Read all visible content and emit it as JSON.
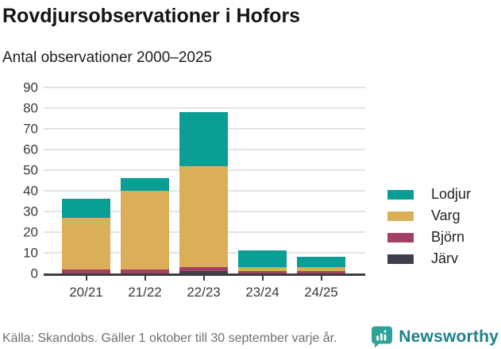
{
  "header": {
    "title": "Rovdjursobservationer i Hofors",
    "subtitle": "Antal observationer 2000–2025"
  },
  "chart_data": {
    "type": "bar",
    "stacked": true,
    "title": "Rovdjursobservationer i Hofors",
    "subtitle": "Antal observationer 2000–2025",
    "categories": [
      "20/21",
      "21/22",
      "22/23",
      "23/24",
      "24/25"
    ],
    "series": [
      {
        "name": "Lodjur",
        "color": "#0a9e95",
        "values": [
          9,
          6,
          26,
          8,
          5
        ]
      },
      {
        "name": "Varg",
        "color": "#dbae5a",
        "values": [
          25,
          38,
          49,
          2,
          2
        ]
      },
      {
        "name": "Björn",
        "color": "#a24166",
        "values": [
          2,
          2,
          2,
          1,
          1
        ]
      },
      {
        "name": "Järv",
        "color": "#413d4d",
        "values": [
          0,
          0,
          1,
          0,
          0
        ]
      }
    ],
    "totals": [
      36,
      46,
      78,
      11,
      8
    ],
    "ylim": [
      0,
      90
    ],
    "yticks": [
      0,
      10,
      20,
      30,
      40,
      50,
      60,
      70,
      80,
      90
    ],
    "grid": true,
    "legend_position": "right"
  },
  "footer": {
    "source": "Källa: Skandobs. Gäller 1 oktober till 30 september varje år.",
    "brand": "Newsworthy",
    "brand_color": "#1f808b",
    "brand_icon_color": "#2ea39a",
    "brand_icon": "newsworthy-logo-icon"
  }
}
